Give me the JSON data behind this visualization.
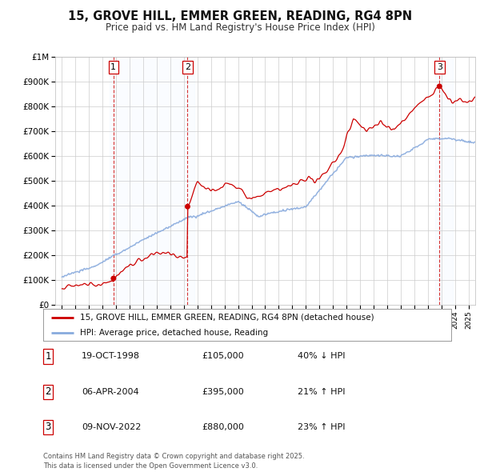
{
  "title": "15, GROVE HILL, EMMER GREEN, READING, RG4 8PN",
  "subtitle": "Price paid vs. HM Land Registry's House Price Index (HPI)",
  "yticks": [
    0,
    100000,
    200000,
    300000,
    400000,
    500000,
    600000,
    700000,
    800000,
    900000,
    1000000
  ],
  "ytick_labels": [
    "£0",
    "£100K",
    "£200K",
    "£300K",
    "£400K",
    "£500K",
    "£600K",
    "£700K",
    "£800K",
    "£900K",
    "£1M"
  ],
  "xlim_start": 1994.5,
  "xlim_end": 2025.5,
  "ylim_min": 0,
  "ylim_max": 1000000,
  "sale_dates": [
    1998.8,
    2004.27,
    2022.86
  ],
  "sale_prices": [
    105000,
    395000,
    880000
  ],
  "sale_labels": [
    "1",
    "2",
    "3"
  ],
  "line_color_property": "#cc0000",
  "line_color_hpi": "#88aadd",
  "legend_property": "15, GROVE HILL, EMMER GREEN, READING, RG4 8PN (detached house)",
  "legend_hpi": "HPI: Average price, detached house, Reading",
  "table_rows": [
    {
      "num": "1",
      "date": "19-OCT-1998",
      "price": "£105,000",
      "hpi": "40% ↓ HPI"
    },
    {
      "num": "2",
      "date": "06-APR-2004",
      "price": "£395,000",
      "hpi": "21% ↑ HPI"
    },
    {
      "num": "3",
      "date": "09-NOV-2022",
      "price": "£880,000",
      "hpi": "23% ↑ HPI"
    }
  ],
  "footnote": "Contains HM Land Registry data © Crown copyright and database right 2025.\nThis data is licensed under the Open Government Licence v3.0.",
  "bg_color": "#ffffff",
  "plot_bg_color": "#ffffff",
  "grid_color": "#cccccc",
  "shade_color": "#ddeeff"
}
